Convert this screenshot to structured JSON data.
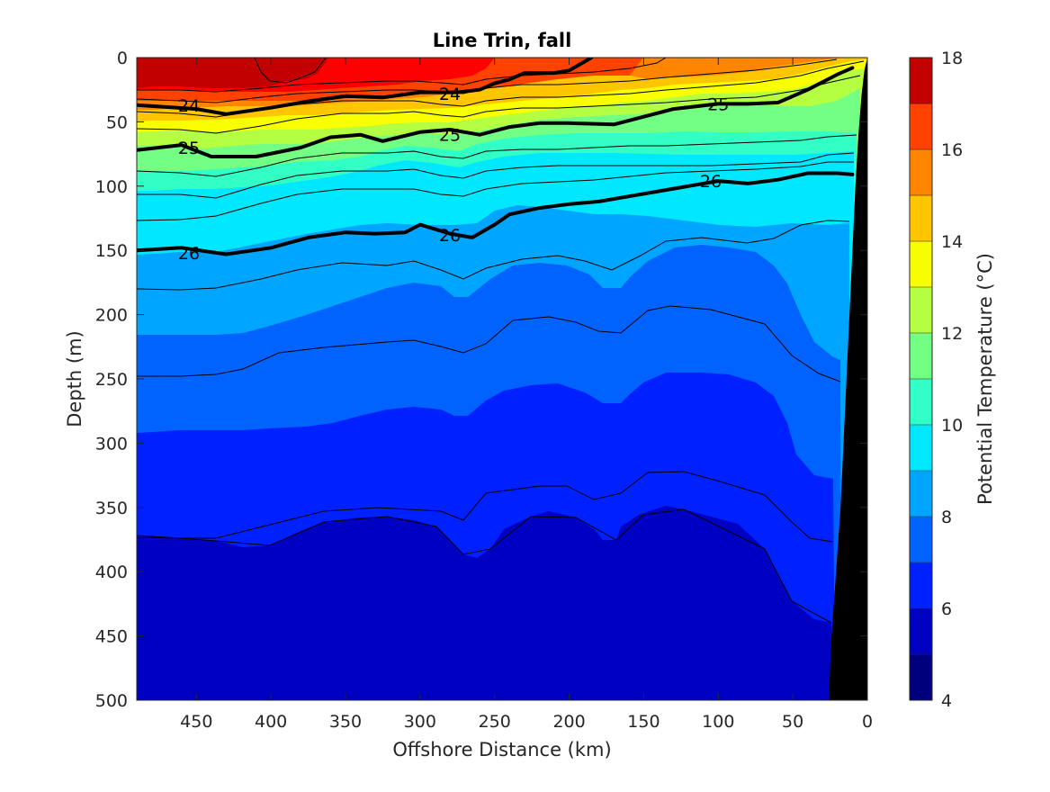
{
  "chart_data": {
    "type": "contour",
    "title": "Line Trin, fall",
    "xlabel": "Offshore Distance (km)",
    "ylabel": "Depth (m)",
    "xlim": [
      490,
      0
    ],
    "ylim": [
      500,
      0
    ],
    "x_reversed": true,
    "y_reversed": true,
    "xticks": [
      450,
      400,
      350,
      300,
      250,
      200,
      150,
      100,
      50,
      0
    ],
    "yticks": [
      0,
      50,
      100,
      150,
      200,
      250,
      300,
      350,
      400,
      450,
      500
    ],
    "colorbar": {
      "label": "Potential Temperature (°C)",
      "range": [
        4,
        18
      ],
      "ticks": [
        4,
        6,
        8,
        10,
        12,
        14,
        16,
        18
      ],
      "levels": [
        4,
        5,
        6,
        7,
        8,
        9,
        10,
        11,
        12,
        13,
        14,
        15,
        16,
        17,
        18
      ],
      "colors": [
        "#00007f",
        "#0000c2",
        "#0021ff",
        "#0063ff",
        "#00a5ff",
        "#00e8ff",
        "#31ffc6",
        "#73ff84",
        "#b5ff42",
        "#f7ff00",
        "#ffc600",
        "#ff8400",
        "#ff4200",
        "#c20000"
      ]
    },
    "density_contours": [
      {
        "level": "24",
        "x": [
          490,
          450,
          430,
          400,
          375,
          350,
          325,
          300,
          275,
          260,
          250,
          240,
          230,
          210,
          200,
          185
        ],
        "y": [
          37,
          40,
          44,
          39,
          34,
          30,
          31,
          27,
          27,
          25,
          20,
          17,
          12,
          12,
          10,
          0
        ]
      },
      {
        "level": "25",
        "x": [
          490,
          460,
          440,
          410,
          380,
          360,
          340,
          325,
          300,
          280,
          260,
          240,
          220,
          200,
          170,
          150,
          130,
          100,
          80,
          60,
          40,
          20,
          10
        ],
        "y": [
          72,
          68,
          77,
          77,
          70,
          62,
          60,
          65,
          58,
          56,
          60,
          54,
          51,
          51,
          52,
          46,
          40,
          36,
          36,
          35,
          25,
          13,
          8
        ]
      },
      {
        "level": "26",
        "x": [
          490,
          460,
          430,
          400,
          375,
          350,
          330,
          310,
          300,
          280,
          265,
          250,
          240,
          220,
          200,
          180,
          160,
          140,
          120,
          100,
          80,
          60,
          40,
          20,
          10
        ],
        "y": [
          150,
          148,
          153,
          148,
          140,
          136,
          137,
          136,
          130,
          137,
          140,
          130,
          122,
          117,
          114,
          112,
          108,
          104,
          100,
          96,
          98,
          95,
          90,
          90,
          91
        ]
      }
    ],
    "contour_labels": [
      {
        "text": "24",
        "x": 455,
        "y": 37
      },
      {
        "text": "24",
        "x": 280,
        "y": 28
      },
      {
        "text": "25",
        "x": 455,
        "y": 70
      },
      {
        "text": "25",
        "x": 280,
        "y": 60
      },
      {
        "text": "25",
        "x": 100,
        "y": 36
      },
      {
        "text": "26",
        "x": 455,
        "y": 152
      },
      {
        "text": "26",
        "x": 280,
        "y": 138
      },
      {
        "text": "26",
        "x": 105,
        "y": 96
      }
    ],
    "bathymetry": {
      "x": [
        26,
        24,
        21,
        18,
        16,
        14,
        12,
        10,
        8,
        6,
        4,
        2,
        0,
        0
      ],
      "y": [
        500,
        450,
        400,
        350,
        300,
        250,
        200,
        150,
        100,
        60,
        30,
        10,
        0,
        500
      ]
    }
  }
}
